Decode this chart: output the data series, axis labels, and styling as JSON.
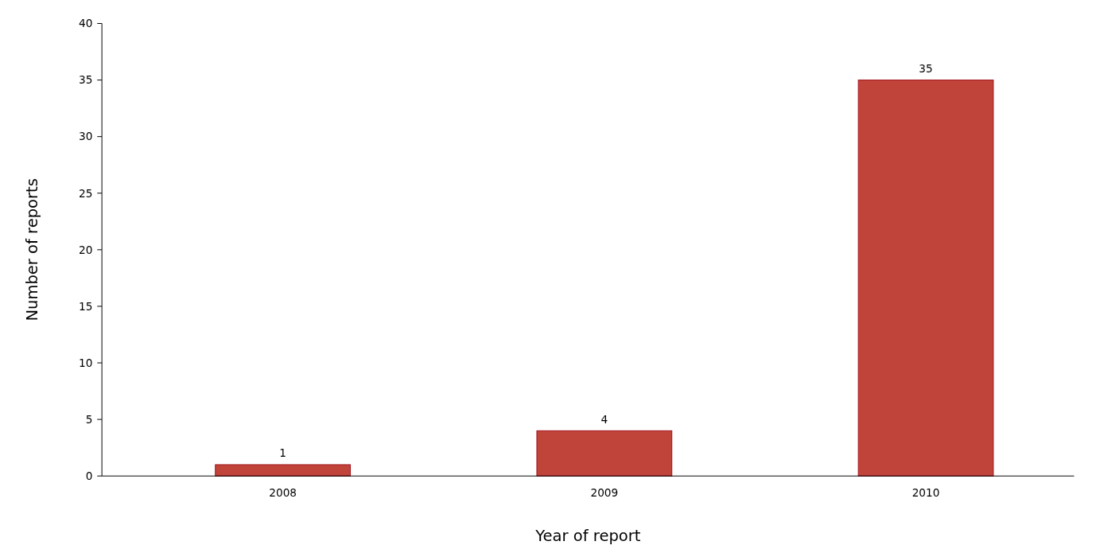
{
  "chart_data": {
    "type": "bar",
    "xlabel": "Year of report",
    "ylabel": "Number of reports",
    "categories": [
      "2008",
      "2009",
      "2010"
    ],
    "values": [
      1,
      4,
      35
    ],
    "color": "#c1443a",
    "ylim": [
      0,
      40
    ],
    "yticks": [
      0,
      5,
      10,
      15,
      20,
      25,
      30,
      35,
      40
    ],
    "data_labels": true
  }
}
